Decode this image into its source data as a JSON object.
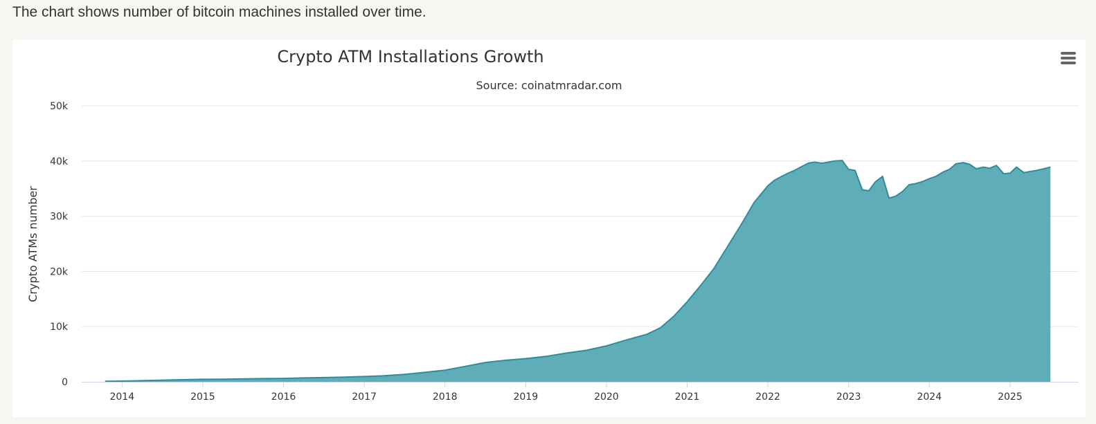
{
  "intro_text": "The chart shows number of bitcoin machines installed over time.",
  "menu": {
    "icon": "hamburger-menu-icon"
  },
  "colors": {
    "fill": "#4aa2b1",
    "line": "#2f8c99",
    "grid": "#e6e6e6",
    "text": "#333333"
  },
  "chart_data": {
    "type": "area",
    "title": "Crypto ATM Installations Growth",
    "subtitle": "Source: coinatmradar.com",
    "xlabel": "",
    "ylabel": "Crypto ATMs number",
    "x_ticks": [
      "2014",
      "2015",
      "2016",
      "2017",
      "2018",
      "2019",
      "2020",
      "2021",
      "2022",
      "2023",
      "2024",
      "2025"
    ],
    "y_ticks": [
      "0",
      "10k",
      "20k",
      "30k",
      "40k",
      "50k"
    ],
    "ylim": [
      0,
      50000
    ],
    "xlim": [
      2013.5,
      2025.85
    ],
    "grid": true,
    "legend": false,
    "series": [
      {
        "x": [
          2013.79,
          2014.0,
          2014.25,
          2014.5,
          2014.75,
          2015.0,
          2015.25,
          2015.5,
          2015.75,
          2016.0,
          2016.25,
          2016.5,
          2016.75,
          2017.0,
          2017.25,
          2017.5,
          2017.75,
          2018.0,
          2018.25,
          2018.5,
          2018.75,
          2019.0,
          2019.25,
          2019.5,
          2019.75,
          2020.0,
          2020.25,
          2020.5,
          2020.67,
          2020.83,
          2021.0,
          2021.17,
          2021.33,
          2021.5,
          2021.67,
          2021.83,
          2022.0,
          2022.08,
          2022.17,
          2022.25,
          2022.33,
          2022.42,
          2022.5,
          2022.58,
          2022.67,
          2022.75,
          2022.83,
          2022.92,
          2023.0,
          2023.08,
          2023.17,
          2023.25,
          2023.33,
          2023.42,
          2023.5,
          2023.58,
          2023.67,
          2023.75,
          2023.83,
          2023.92,
          2024.0,
          2024.08,
          2024.17,
          2024.25,
          2024.33,
          2024.42,
          2024.5,
          2024.58,
          2024.67,
          2024.75,
          2024.83,
          2024.92,
          2025.0,
          2025.08,
          2025.17,
          2025.25,
          2025.33,
          2025.42,
          2025.5
        ],
        "y": [
          100,
          120,
          200,
          300,
          380,
          450,
          480,
          530,
          580,
          620,
          700,
          770,
          850,
          950,
          1100,
          1350,
          1700,
          2100,
          2800,
          3500,
          3900,
          4200,
          4600,
          5200,
          5700,
          6500,
          7600,
          8600,
          9800,
          11800,
          14500,
          17500,
          20500,
          24500,
          28500,
          32500,
          35500,
          36500,
          37200,
          37800,
          38300,
          39000,
          39600,
          39800,
          39600,
          39800,
          40000,
          40100,
          38500,
          38300,
          34800,
          34600,
          36200,
          37200,
          33300,
          33600,
          34500,
          35700,
          35900,
          36300,
          36800,
          37200,
          38000,
          38500,
          39500,
          39700,
          39400,
          38600,
          38900,
          38700,
          39200,
          37700,
          37800,
          38900,
          37900,
          38100,
          38300,
          38600,
          38900
        ]
      }
    ]
  }
}
